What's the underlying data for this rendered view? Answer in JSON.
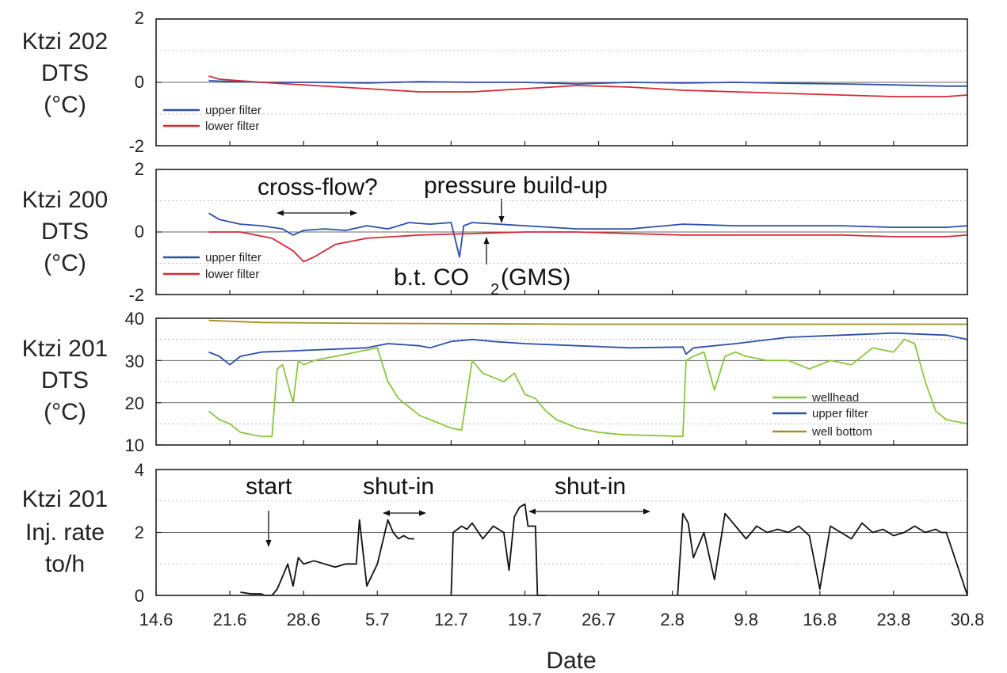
{
  "x_axis": {
    "label": "Date",
    "ticks": [
      "14.6",
      "21.6",
      "28.6",
      "5.7",
      "12.7",
      "19.7",
      "26.7",
      "2.8",
      "9.8",
      "16.8",
      "23.8",
      "30.8"
    ]
  },
  "chart_data": [
    {
      "type": "line",
      "ylabel_lines": [
        "Ktzi 202",
        "DTS",
        "(°C)"
      ],
      "ylim": [
        -2,
        2
      ],
      "yticks": [
        "2",
        "0",
        "-2"
      ],
      "zero_line": true,
      "grid": "dotted",
      "legend_placement": "bottom-left",
      "x_range_days": [
        0,
        77
      ],
      "series": [
        {
          "name": "upper filter",
          "color": "#2b4fa8",
          "x": [
            5,
            10,
            15,
            20,
            25,
            30,
            35,
            40,
            45,
            50,
            55,
            60,
            65,
            70,
            75,
            77
          ],
          "y": [
            0.05,
            0.0,
            0.0,
            -0.02,
            0.02,
            0.0,
            0.0,
            -0.05,
            0.0,
            -0.02,
            0.0,
            -0.03,
            -0.05,
            -0.08,
            -0.12,
            -0.12
          ]
        },
        {
          "name": "lower filter",
          "color": "#d42a35",
          "x": [
            5,
            6,
            10,
            15,
            20,
            25,
            30,
            35,
            40,
            45,
            50,
            55,
            60,
            65,
            70,
            75,
            77
          ],
          "y": [
            0.2,
            0.1,
            0.0,
            -0.1,
            -0.2,
            -0.3,
            -0.3,
            -0.2,
            -0.1,
            -0.15,
            -0.25,
            -0.3,
            -0.35,
            -0.4,
            -0.45,
            -0.45,
            -0.4
          ]
        }
      ]
    },
    {
      "type": "line",
      "ylabel_lines": [
        "Ktzi 200",
        "DTS",
        "(°C)"
      ],
      "ylim": [
        -2,
        2
      ],
      "yticks": [
        "2",
        "0",
        "-2"
      ],
      "zero_line": true,
      "grid": "dotted",
      "legend_placement": "bottom-left",
      "x_range_days": [
        0,
        77
      ],
      "series": [
        {
          "name": "upper filter",
          "color": "#2b4fa8",
          "x": [
            5,
            6,
            8,
            10,
            12,
            13,
            14,
            16,
            18,
            20,
            22,
            24,
            26,
            28,
            28.8,
            29.2,
            30,
            35,
            40,
            45,
            50,
            55,
            60,
            65,
            70,
            75,
            77
          ],
          "y": [
            0.6,
            0.4,
            0.25,
            0.2,
            0.1,
            -0.1,
            0.05,
            0.1,
            0.05,
            0.2,
            0.1,
            0.3,
            0.25,
            0.3,
            -0.8,
            0.2,
            0.3,
            0.2,
            0.1,
            0.1,
            0.25,
            0.2,
            0.2,
            0.2,
            0.15,
            0.15,
            0.2
          ]
        },
        {
          "name": "lower filter",
          "color": "#d42a35",
          "x": [
            5,
            8,
            11,
            13,
            14,
            15,
            17,
            20,
            25,
            30,
            35,
            40,
            45,
            50,
            55,
            60,
            65,
            70,
            75,
            77
          ],
          "y": [
            0.0,
            0.0,
            -0.2,
            -0.6,
            -0.95,
            -0.8,
            -0.4,
            -0.2,
            -0.1,
            -0.05,
            0.0,
            0.0,
            -0.05,
            -0.1,
            -0.1,
            -0.1,
            -0.1,
            -0.15,
            -0.15,
            -0.1
          ]
        }
      ],
      "annotations": [
        "cross-flow?",
        "pressure build-up",
        "b.t. CO",
        "2",
        "(GMS)"
      ]
    },
    {
      "type": "line",
      "ylabel_lines": [
        "Ktzi 201",
        "DTS",
        "(°C)"
      ],
      "ylim": [
        10,
        40
      ],
      "yticks": [
        "40",
        "30",
        "20",
        "10"
      ],
      "grid": "dotted",
      "legend_placement": "bottom-right",
      "x_range_days": [
        0,
        77
      ],
      "series": [
        {
          "name": "wellhead",
          "color": "#8cc63f",
          "x": [
            5,
            6,
            7,
            8,
            9,
            10,
            11,
            11.5,
            12,
            13,
            13.5,
            14,
            15,
            17,
            19,
            21,
            22,
            23,
            24,
            25,
            26,
            27,
            28,
            29,
            30,
            31,
            32,
            33,
            34,
            35,
            36,
            37,
            38,
            40,
            42,
            44,
            46,
            48,
            50,
            50.3,
            51,
            52,
            53,
            54,
            55,
            56,
            58,
            60,
            62,
            64,
            66,
            68,
            70,
            71,
            72,
            73,
            74,
            75,
            77
          ],
          "y": [
            18,
            16,
            15,
            13,
            12.5,
            12,
            12,
            28,
            29,
            20,
            30,
            29,
            30,
            31,
            32,
            33,
            25,
            21,
            19,
            17,
            16,
            15,
            14,
            13.5,
            30,
            27,
            26,
            25,
            27,
            22,
            21,
            18,
            16,
            14,
            13,
            12.5,
            12.3,
            12.2,
            12,
            30,
            31,
            32,
            23,
            31,
            32,
            31,
            30,
            30,
            28,
            30,
            29,
            33,
            32,
            35,
            34,
            25,
            18,
            16,
            15
          ]
        },
        {
          "name": "upper filter",
          "color": "#2b4fa8",
          "x": [
            5,
            6,
            7,
            8,
            10,
            15,
            20,
            22,
            25,
            26,
            28,
            30,
            32,
            35,
            40,
            45,
            50,
            50.3,
            51,
            55,
            60,
            65,
            70,
            75,
            77
          ],
          "y": [
            32,
            31,
            29,
            31,
            32,
            32.5,
            33,
            34,
            33.5,
            33,
            34.5,
            35,
            34.5,
            34,
            33.5,
            33,
            33.2,
            31.5,
            33,
            34,
            35.5,
            36,
            36.5,
            36,
            35
          ]
        },
        {
          "name": "well bottom",
          "color": "#a39021",
          "x": [
            5,
            10,
            20,
            30,
            40,
            50,
            60,
            70,
            77
          ],
          "y": [
            39.5,
            39.0,
            38.8,
            38.7,
            38.6,
            38.6,
            38.6,
            38.6,
            38.6
          ]
        }
      ]
    },
    {
      "type": "line",
      "ylabel_lines": [
        "Ktzi 201",
        "Inj. rate",
        "to/h"
      ],
      "ylim": [
        0,
        4
      ],
      "yticks": [
        "4",
        "2",
        "0"
      ],
      "grid": "dotted",
      "x_range_days": [
        0,
        77
      ],
      "series": [
        {
          "name": "",
          "color": "#111111",
          "x": [
            8,
            9,
            10,
            10.3,
            11,
            11.5,
            12,
            12.5,
            13,
            13.5,
            14,
            15,
            16,
            17,
            18,
            19,
            19.3,
            20,
            21,
            22,
            22.5,
            23,
            23.5,
            24,
            24.5,
            25,
            27,
            28,
            28.2,
            29,
            29.5,
            30,
            31,
            32,
            33,
            33.5,
            34,
            34.5,
            35,
            35.3,
            36,
            36.2,
            37,
            38,
            40,
            42,
            44,
            46,
            48,
            49.5,
            50,
            50.5,
            51,
            52,
            53,
            54,
            55,
            56,
            57,
            58,
            59,
            60,
            61,
            62,
            63,
            64,
            65,
            66,
            67,
            68,
            69,
            70,
            71,
            72,
            73,
            74,
            74.5,
            75,
            77
          ],
          "y": [
            0.1,
            0.05,
            0.05,
            0.0,
            0.0,
            0.2,
            0.6,
            1.0,
            0.3,
            1.2,
            1.0,
            1.1,
            1.0,
            0.9,
            1.0,
            1.0,
            2.4,
            0.3,
            1.0,
            2.4,
            2.0,
            1.8,
            1.9,
            1.8,
            1.8,
            null,
            null,
            0.0,
            2.0,
            2.2,
            2.1,
            2.3,
            1.8,
            2.2,
            2.0,
            0.8,
            2.5,
            2.8,
            2.9,
            2.2,
            2.2,
            0.0,
            0.0,
            null,
            null,
            null,
            null,
            null,
            null,
            0.0,
            2.6,
            2.3,
            1.2,
            2.0,
            0.5,
            2.6,
            2.2,
            1.8,
            2.2,
            2.0,
            2.1,
            2.0,
            2.2,
            1.9,
            0.2,
            2.2,
            2.0,
            1.8,
            2.3,
            2.0,
            2.1,
            1.9,
            2.0,
            2.2,
            2.0,
            2.1,
            2.0,
            2.0,
            0.0
          ]
        }
      ],
      "annotations": [
        "start",
        "shut-in",
        "shut-in"
      ]
    }
  ]
}
